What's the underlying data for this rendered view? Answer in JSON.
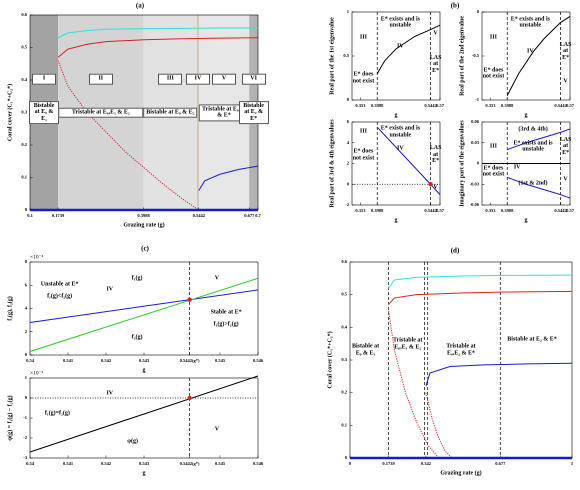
{
  "chart_data": [
    {
      "type": "line",
      "title": "(a)",
      "xlabel": "Grazing rate (g)",
      "ylabel": "Coral cover (C₁*+C₂*)",
      "xlim": [
        0.1,
        0.7
      ],
      "ylim": [
        0,
        0.6
      ],
      "xticks": [
        0.1,
        0.1739,
        0.3988,
        0.5442,
        0.677,
        0.7
      ],
      "yticks": [
        0,
        0.1,
        0.2,
        0.3,
        0.4,
        0.5,
        0.6
      ],
      "regions": [
        {
          "label": "I",
          "text": "Bistable at E₀ & E₁",
          "from": 0.1,
          "to": 0.1739,
          "color": "#a3a3a3"
        },
        {
          "label": "II",
          "text": "Tristable at E₀,E₁ & E₂",
          "from": 0.1739,
          "to": 0.3988,
          "color": "#d4d4d4"
        },
        {
          "label": "III",
          "text": "Bistable at E₀ & E₂",
          "from": 0.3988,
          "to": 0.54,
          "color": "#e2e2e2"
        },
        {
          "label": "IV",
          "from": 0.54,
          "to": 0.5442,
          "color": "#c9b8a4"
        },
        {
          "label": "V",
          "text": "Tristable at E₀,E₂ & E*",
          "from": 0.5442,
          "to": 0.677,
          "color": "#e6e6e6"
        },
        {
          "label": "VI",
          "text": "Bistable at E₂ & E*",
          "from": 0.677,
          "to": 0.7,
          "color": "#b3b3b3"
        }
      ],
      "series": [
        {
          "color": "#33e0e0",
          "x": [
            0.1739,
            0.2,
            0.25,
            0.3,
            0.4,
            0.5,
            0.6,
            0.7
          ],
          "values": [
            0.53,
            0.545,
            0.552,
            0.556,
            0.558,
            0.559,
            0.56,
            0.56
          ]
        },
        {
          "color": "#e02020",
          "x": [
            0.1739,
            0.2,
            0.25,
            0.3,
            0.4,
            0.5,
            0.6,
            0.7
          ],
          "values": [
            0.47,
            0.495,
            0.51,
            0.518,
            0.524,
            0.527,
            0.529,
            0.53
          ]
        },
        {
          "color": "#e02020",
          "dash": true,
          "x": [
            0.1739,
            0.2,
            0.25,
            0.3,
            0.35,
            0.4,
            0.45,
            0.5,
            0.5442
          ],
          "values": [
            0.46,
            0.38,
            0.3,
            0.24,
            0.18,
            0.13,
            0.08,
            0.035,
            0
          ]
        },
        {
          "color": "#1a1acc",
          "width": 2.5,
          "x": [
            0.1,
            0.7
          ],
          "values": [
            0,
            0
          ]
        },
        {
          "color": "#1a1acc",
          "x": [
            0.5442,
            0.56,
            0.6,
            0.65,
            0.7
          ],
          "values": [
            0.06,
            0.09,
            0.11,
            0.125,
            0.135
          ]
        }
      ]
    },
    {
      "type": "line",
      "title": "(b)",
      "xlabel": "g",
      "ylabel": "Real part of the 1st eigenvalue",
      "xlim": [
        0.33,
        0.57
      ],
      "ylim": [
        0,
        1
      ],
      "xticks": [
        0.353,
        0.3988,
        0.5442,
        0.57
      ],
      "yticks": [
        0,
        0.5,
        1
      ],
      "vlines": [
        0.3988,
        0.5442
      ],
      "series": [
        {
          "color": "#000000",
          "x": [
            0.3988,
            0.42,
            0.45,
            0.5,
            0.5442,
            0.57
          ],
          "values": [
            0.3,
            0.45,
            0.58,
            0.72,
            0.8,
            0.85
          ]
        }
      ],
      "annotations": [
        "III",
        "E* does not exist",
        "E* exists and is unstable",
        "IV",
        "V",
        "LAS at E*"
      ]
    },
    {
      "type": "line",
      "xlabel": "g",
      "ylabel": "Real part of the 2nd eigenvalue",
      "xlim": [
        0.33,
        0.57
      ],
      "ylim": [
        -1,
        0
      ],
      "xticks": [
        0.353,
        0.3988,
        0.5442,
        0.57
      ],
      "yticks": [
        -1,
        -0.5,
        0
      ],
      "vlines": [
        0.3988,
        0.5442
      ],
      "series": [
        {
          "color": "#000000",
          "x": [
            0.3988,
            0.43,
            0.47,
            0.5,
            0.5442,
            0.57
          ],
          "values": [
            -0.95,
            -0.7,
            -0.45,
            -0.3,
            -0.12,
            -0.05
          ]
        }
      ],
      "annotations": [
        "III",
        "E* does not exist",
        "E* exists and is unstable",
        "IV",
        "LAS at E*",
        "V"
      ]
    },
    {
      "type": "line",
      "xlabel": "g",
      "ylabel": "Real part of 3rd & 4th eigenvalues",
      "xlim": [
        0.33,
        0.57
      ],
      "ylim": [
        -2,
        6
      ],
      "xticks": [
        0.353,
        0.3988,
        0.5442,
        0.57
      ],
      "yticks": [
        -2,
        0,
        2,
        4,
        6
      ],
      "vlines": [
        0.3988,
        0.5442
      ],
      "hlines": [
        0
      ],
      "series": [
        {
          "color": "#1a1acc",
          "x": [
            0.3988,
            0.5442,
            0.57
          ],
          "values": [
            5.5,
            0,
            -1
          ]
        }
      ],
      "points": [
        {
          "x": 0.5442,
          "y": 0,
          "color": "#e02020"
        }
      ],
      "annotations": [
        "III",
        "E* does not exist",
        "E* exists and is unstable",
        "IV",
        "LAS at E*",
        "V"
      ]
    },
    {
      "type": "line",
      "xlabel": "g",
      "ylabel": "Imaginary part of the eigenvalues",
      "xlim": [
        0.33,
        0.57
      ],
      "ylim": [
        -0.06,
        0.06
      ],
      "xticks": [
        0.353,
        0.3988,
        0.5442,
        0.57
      ],
      "yticks": [
        -0.06,
        -0.03,
        0,
        0.03,
        0.06
      ],
      "vlines": [
        0.3988,
        0.5442
      ],
      "series": [
        {
          "color": "#1a1acc",
          "x": [
            0.3988,
            0.45,
            0.5,
            0.5442,
            0.57
          ],
          "values": [
            0.02,
            0.03,
            0.038,
            0.045,
            0.05
          ]
        },
        {
          "color": "#1a1acc",
          "x": [
            0.3988,
            0.45,
            0.5,
            0.5442,
            0.57
          ],
          "values": [
            -0.02,
            -0.03,
            -0.038,
            -0.045,
            -0.05
          ]
        },
        {
          "color": "#000000",
          "x": [
            0.33,
            0.57
          ],
          "values": [
            0,
            0
          ]
        }
      ],
      "annotations": [
        "III",
        "E* does not exist",
        "(3rd & 4th)",
        "E* exists and is unstable",
        "IV",
        "(1st & 2nd)",
        "LAS at E*",
        "V"
      ]
    },
    {
      "type": "line",
      "title": "(c)",
      "xlabel": "g",
      "ylabel": "f₁(g), f₂(g)",
      "y_multiplier": "×10⁻⁴",
      "xlim": [
        0.54,
        0.546
      ],
      "ylim": [
        0,
        8
      ],
      "xticks": [
        0.54,
        0.541,
        0.542,
        0.543,
        {
          "value": 0.5442,
          "label": "0.5442(g*)"
        },
        0.545,
        0.546
      ],
      "yticks": [
        0,
        2,
        4,
        6,
        8
      ],
      "vlines": [
        0.5442
      ],
      "series": [
        {
          "color": "#1a1acc",
          "x": [
            0.54,
            0.546
          ],
          "values": [
            2.8,
            5.6
          ]
        },
        {
          "color": "#22cc22",
          "x": [
            0.54,
            0.546
          ],
          "values": [
            0.3,
            6.6
          ]
        }
      ],
      "points": [
        {
          "x": 0.5442,
          "y": 4.76,
          "color": "#e02020"
        }
      ],
      "annotations": [
        "Unstable at E*",
        "f₁(g)<f₂(g)",
        "IV",
        "f₁(g)",
        "f₂(g)",
        "V",
        "Stable at E*",
        "f₁(g)>f₂(g)"
      ]
    },
    {
      "type": "line",
      "xlabel": "g",
      "ylabel": "φ(g) = f₁(g) − f₂(g)",
      "y_multiplier": "×10⁻⁴",
      "xlim": [
        0.54,
        0.546
      ],
      "ylim": [
        -3,
        1
      ],
      "xticks": [
        0.54,
        0.541,
        0.542,
        0.543,
        {
          "value": 0.5442,
          "label": "0.5442(g*)"
        },
        0.545,
        0.546
      ],
      "yticks": [
        -3,
        -2,
        -1,
        0,
        1
      ],
      "vlines": [
        0.5442
      ],
      "hlines": [
        0
      ],
      "series": [
        {
          "color": "#000000",
          "x": [
            0.54,
            0.546
          ],
          "values": [
            -2.7,
            1.1
          ]
        }
      ],
      "points": [
        {
          "x": 0.5442,
          "y": 0,
          "color": "#e02020"
        }
      ],
      "annotations": [
        "IV",
        "f₁(g)=f₂(g)",
        "φ(g)",
        "V"
      ]
    },
    {
      "type": "line",
      "title": "(d)",
      "xlabel": "Grazing rate (g)",
      "ylabel": "Coral cover (C₁*+C₂*)",
      "xlim": [
        0,
        1
      ],
      "ylim": [
        0,
        0.6
      ],
      "xticks": [
        0,
        0.1739,
        0.342,
        0.677,
        1
      ],
      "yticks": [
        0,
        0.1,
        0.2,
        0.3,
        0.4,
        0.5,
        0.6
      ],
      "vlines": [
        0.1739,
        0.335,
        0.35,
        0.677
      ],
      "series": [
        {
          "color": "#33e0e0",
          "x": [
            0.1739,
            0.2,
            0.3,
            0.5,
            0.7,
            1
          ],
          "values": [
            0.52,
            0.545,
            0.553,
            0.557,
            0.559,
            0.56
          ]
        },
        {
          "color": "#e02020",
          "x": [
            0.1739,
            0.2,
            0.3,
            0.5,
            0.7,
            1
          ],
          "values": [
            0.47,
            0.49,
            0.5,
            0.505,
            0.508,
            0.51
          ]
        },
        {
          "color": "#e02020",
          "dash": true,
          "x": [
            0.1739,
            0.2,
            0.25,
            0.3,
            0.35,
            0.4
          ],
          "values": [
            0.45,
            0.33,
            0.2,
            0.11,
            0.04,
            0
          ]
        },
        {
          "color": "#e02020",
          "dash": true,
          "x": [
            0.342,
            0.37,
            0.4,
            0.43,
            0.46
          ],
          "values": [
            0.2,
            0.12,
            0.06,
            0.02,
            0
          ]
        },
        {
          "color": "#1a1acc",
          "x": [
            0.342,
            0.36,
            0.45,
            0.6,
            0.8,
            1
          ],
          "values": [
            0.22,
            0.26,
            0.28,
            0.285,
            0.288,
            0.29
          ]
        },
        {
          "color": "#1a1acc",
          "width": 2.5,
          "x": [
            0,
            1
          ],
          "values": [
            0,
            0
          ]
        }
      ],
      "annotations": [
        "Bistable at E₀ & E₁",
        "Tristable at E₀,E₁ & E₂",
        "Tristable at E₀,E₂ & E*",
        "Bistable at E₂ & E*"
      ]
    }
  ]
}
